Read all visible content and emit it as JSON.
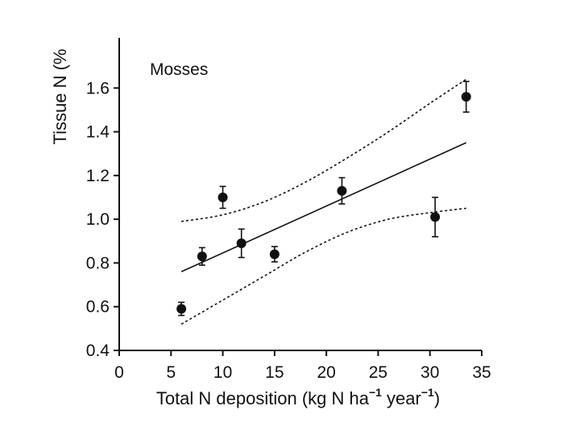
{
  "chart_data": {
    "type": "scatter",
    "panel_label": "Mosses",
    "ylabel": "Tissue N (%",
    "xlabel": {
      "main": "Total N deposition (kg N ha",
      "exp1": "−1",
      "middle": " year",
      "exp2": "−1",
      "end": ")"
    },
    "xlim": [
      0,
      35
    ],
    "ylim": [
      0.4,
      1.8
    ],
    "x_ticks": [
      0,
      5,
      10,
      15,
      20,
      25,
      30,
      35
    ],
    "x_tick_labels": [
      "0",
      "5",
      "10",
      "15",
      "20",
      "25",
      "30",
      "35"
    ],
    "y_ticks": [
      0.4,
      0.6,
      0.8,
      1.0,
      1.2,
      1.4,
      1.6
    ],
    "y_tick_labels": [
      "0.4",
      "0.6",
      "0.8",
      "1.0",
      "1.2",
      "1.4",
      "1.6"
    ],
    "points": [
      {
        "x": 6.0,
        "y": 0.59,
        "err": 0.03
      },
      {
        "x": 8.0,
        "y": 0.83,
        "err": 0.04
      },
      {
        "x": 10.0,
        "y": 1.1,
        "err": 0.05
      },
      {
        "x": 11.8,
        "y": 0.89,
        "err": 0.065
      },
      {
        "x": 15.0,
        "y": 0.84,
        "err": 0.035
      },
      {
        "x": 21.5,
        "y": 1.13,
        "err": 0.06
      },
      {
        "x": 30.5,
        "y": 1.01,
        "err": 0.09
      },
      {
        "x": 33.5,
        "y": 1.56,
        "err": 0.07
      }
    ],
    "regression_line": {
      "x": [
        6,
        33.5
      ],
      "y": [
        0.76,
        1.35
      ]
    },
    "confidence_upper": {
      "x": [
        6,
        10,
        14,
        18,
        22,
        26,
        30,
        33.5
      ],
      "y": [
        0.99,
        1.02,
        1.08,
        1.17,
        1.28,
        1.4,
        1.53,
        1.64
      ]
    },
    "confidence_lower": {
      "x": [
        6,
        10,
        14,
        18,
        22,
        26,
        30,
        33.5
      ],
      "y": [
        0.52,
        0.63,
        0.74,
        0.85,
        0.94,
        1.0,
        1.03,
        1.05
      ]
    }
  }
}
